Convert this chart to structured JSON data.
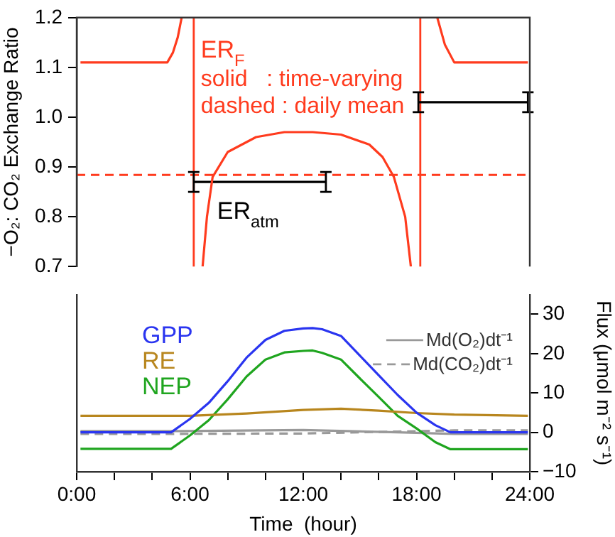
{
  "chart_data": [
    {
      "type": "line",
      "xlim": [
        0,
        24
      ],
      "ylim": [
        0.7,
        1.2
      ],
      "yticks": [
        0.7,
        0.8,
        0.9,
        {
          "value": 1,
          "label": "1.0"
        },
        1.1,
        1.2
      ],
      "ylabel": "−O₂: CO₂ Exchange Ratio",
      "tick_labels": "y",
      "grid": false,
      "annotations": [
        "solid   : time-varying",
        "dashed : daily mean"
      ],
      "ref_lines": [
        {
          "axis": "x",
          "value": 6.2,
          "color": "#ff3b1e"
        },
        {
          "axis": "x",
          "value": 18.2,
          "color": "#ff3b1e"
        },
        {
          "axis": "y",
          "value": 0.884,
          "color": "#ff3b1e",
          "line_style": "dashed"
        }
      ],
      "series": [
        {
          "name": "ER$_{F}$",
          "color": "#ff3b1e",
          "x": [
            0.2,
            4.8,
            5.1,
            5.35,
            5.56,
            6.2,
            6.67,
            6.9,
            7.2,
            8.0,
            9.5,
            11,
            12.5,
            14,
            15.5,
            16.2,
            16.8,
            17.4,
            17.7,
            18.2,
            19.1,
            19.5,
            20,
            23.9
          ],
          "values": [
            1.11,
            1.11,
            1.13,
            1.16,
            1.2,
            null,
            0.7,
            0.8,
            0.88,
            0.93,
            0.96,
            0.97,
            0.97,
            0.965,
            0.945,
            0.92,
            0.88,
            0.8,
            0.7,
            null,
            1.2,
            1.146,
            1.11,
            1.11
          ]
        },
        {
          "name": "ER$_{atm}$",
          "color": "#000000",
          "x": [
            6.2,
            13.2,
            15,
            18.1,
            23.9
          ],
          "values": [
            0.87,
            0.87,
            null,
            1.03,
            1.03
          ],
          "errors": [
            0.02,
            0.02,
            null,
            0.02,
            0.02
          ]
        }
      ]
    },
    {
      "type": "line",
      "xlim": [
        0,
        24
      ],
      "xticks": [
        {
          "value": 0,
          "label": "0:00"
        },
        {
          "value": 2,
          "label": null
        },
        {
          "value": 4,
          "label": null
        },
        {
          "value": 6,
          "label": "6:00"
        },
        {
          "value": 8,
          "label": null
        },
        {
          "value": 10,
          "label": null
        },
        {
          "value": 12,
          "label": "12:00"
        },
        {
          "value": 14,
          "label": null
        },
        {
          "value": 16,
          "label": null
        },
        {
          "value": 18,
          "label": "18:00"
        },
        {
          "value": 20,
          "label": null
        },
        {
          "value": 22,
          "label": null
        },
        {
          "value": 24,
          "label": "24:00"
        }
      ],
      "xlabel": "Time  (hour)",
      "y2lim": [
        -10,
        35
      ],
      "y2ticks": [
        {
          "value": -10,
          "label": "−10"
        },
        0,
        10,
        20,
        30
      ],
      "y2label": "Flux (μmol m⁻² s⁻¹)",
      "grid": false,
      "legend": "top right",
      "series": [
        {
          "name": "GPP",
          "color": "#2a35f0",
          "axis": "y2",
          "x": [
            0.2,
            5,
            6,
            7,
            8,
            9,
            10,
            11,
            12,
            12.5,
            13,
            14,
            15,
            16,
            17,
            18,
            19,
            19.8,
            23.9
          ],
          "values": [
            0,
            0,
            3.4,
            7.5,
            13,
            19,
            23.5,
            25.8,
            26.4,
            26.5,
            26.2,
            24.5,
            19.5,
            14.5,
            9.5,
            5,
            1.8,
            0,
            0
          ]
        },
        {
          "name": "RE",
          "color": "#b8861e",
          "axis": "y2",
          "x": [
            0.2,
            6,
            9,
            12,
            14,
            16,
            18,
            20,
            23.9
          ],
          "values": [
            4.2,
            4.2,
            4.8,
            5.7,
            6,
            5.5,
            4.9,
            4.5,
            4.2
          ]
        },
        {
          "name": "NEP",
          "color": "#1fa51f",
          "axis": "y2",
          "x": [
            0.2,
            5,
            6,
            7,
            8,
            9,
            10,
            11,
            12,
            12.5,
            13,
            14,
            15,
            16,
            17,
            18,
            19,
            19.8,
            23.9
          ],
          "values": [
            -4.2,
            -4.2,
            -0.8,
            3.1,
            8.4,
            14.2,
            18.5,
            20.3,
            20.7,
            20.8,
            20.2,
            18.5,
            13.7,
            9,
            4.2,
            1,
            -2.5,
            -4.3,
            -4.3
          ]
        },
        {
          "name": "Md(O₂)dt⁻¹",
          "color": "#999999",
          "axis": "y2",
          "line_style": "solid",
          "x": [
            0.2,
            5,
            12,
            17,
            20,
            23.9
          ],
          "values": [
            0.3,
            0.3,
            0.6,
            0,
            -0.4,
            -0.4
          ]
        },
        {
          "name": "Md(CO₂)dt⁻¹",
          "color": "#999999",
          "axis": "y2",
          "line_style": "dashed",
          "x": [
            0.2,
            5,
            12,
            17,
            20,
            23.9
          ],
          "values": [
            -0.4,
            -0.4,
            -0.3,
            0.2,
            0.5,
            0.5
          ]
        }
      ]
    }
  ]
}
